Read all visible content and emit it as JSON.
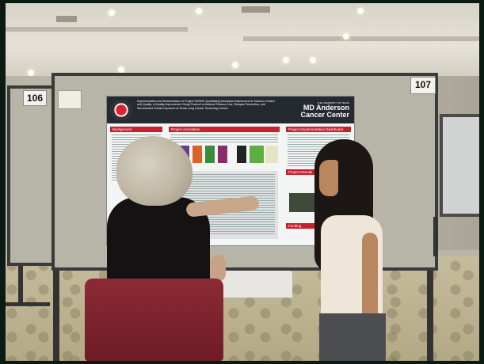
{
  "signs": {
    "left_number": "106",
    "right_number": "107"
  },
  "poster": {
    "title": "Implementation and Dissemination of Project SMOKE Quantifying Workplace Assessment in Tobacco Control and Quality: A Quality Improvement Study Protocol to Address Tobacco Use, Relapse Prevention, and Secondhand Smoke Exposure at Texas Lung Cancer Screening Centers",
    "org_line": "THE UNIVERSITY OF TEXAS",
    "org_name": "MD Anderson Cancer Center",
    "sections": [
      "Background",
      "Project Annotation",
      "Project Implementation Dashboard",
      "Project Results",
      "Funding"
    ]
  },
  "colors": {
    "poster_header": "#242a30",
    "poster_accent": "#c8202e",
    "board": "#b7b5a8",
    "bag": "#8c2a35"
  }
}
